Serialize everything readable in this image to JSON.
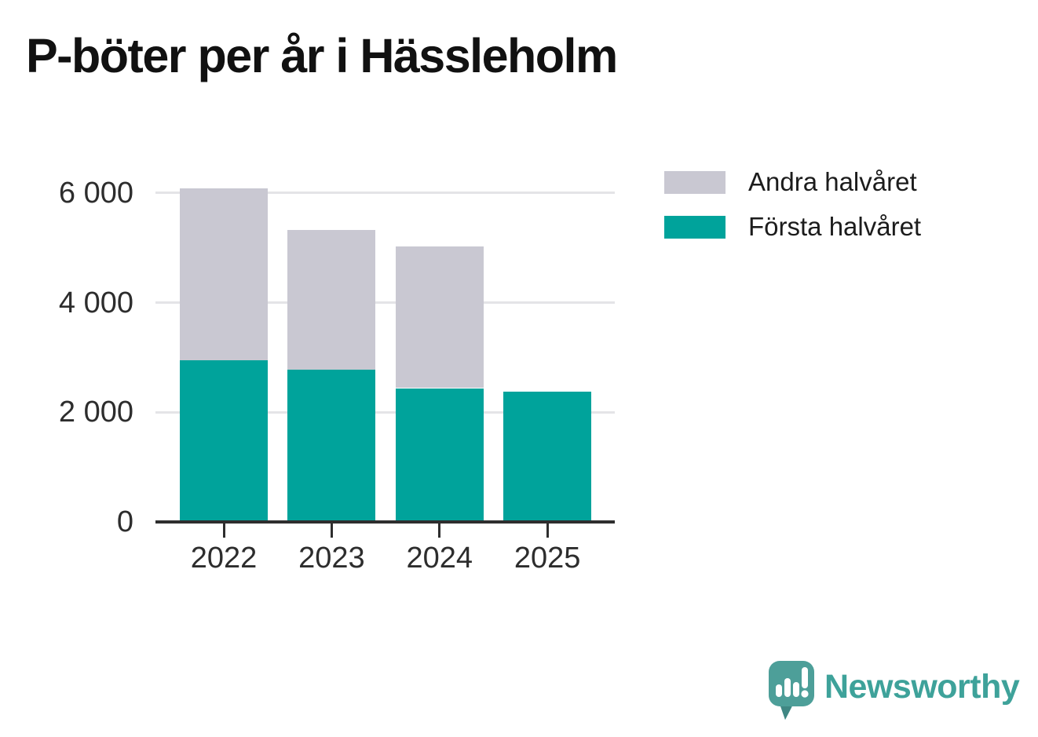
{
  "title": "P-böter per år i Hässleholm",
  "legend": {
    "items": [
      {
        "label": "Andra halvåret",
        "color": "#c9c8d2"
      },
      {
        "label": "Första halvåret",
        "color": "#00a39b"
      }
    ]
  },
  "branding": {
    "name": "Newsworthy",
    "text_color": "#3ea29a",
    "icon_color": "#4d9f99",
    "icon_shadow_color": "#3d827f"
  },
  "chart_data": {
    "type": "bar",
    "stacked": true,
    "title": "P-böter per år i Hässleholm",
    "categories": [
      "2022",
      "2023",
      "2024",
      "2025"
    ],
    "series": [
      {
        "name": "Första halvåret",
        "color": "#00a39b",
        "values": [
          2950,
          2780,
          2440,
          2380
        ]
      },
      {
        "name": "Andra halvåret",
        "color": "#c9c8d2",
        "values": [
          3130,
          2550,
          2590,
          0
        ]
      }
    ],
    "totals": [
      6080,
      5330,
      5030,
      2380
    ],
    "xlabel": "",
    "ylabel": "",
    "ylim": [
      0,
      6400
    ],
    "ytick_values": [
      0,
      2000,
      4000,
      6000
    ],
    "ytick_labels": [
      "0",
      "2 000",
      "4 000",
      "6 000"
    ],
    "grid": "horizontal-only",
    "legend_position": "top-right",
    "axis_color": "#2e2e2e",
    "gridline_color": "#e4e4e7",
    "label_color": "#2d2d2d"
  }
}
